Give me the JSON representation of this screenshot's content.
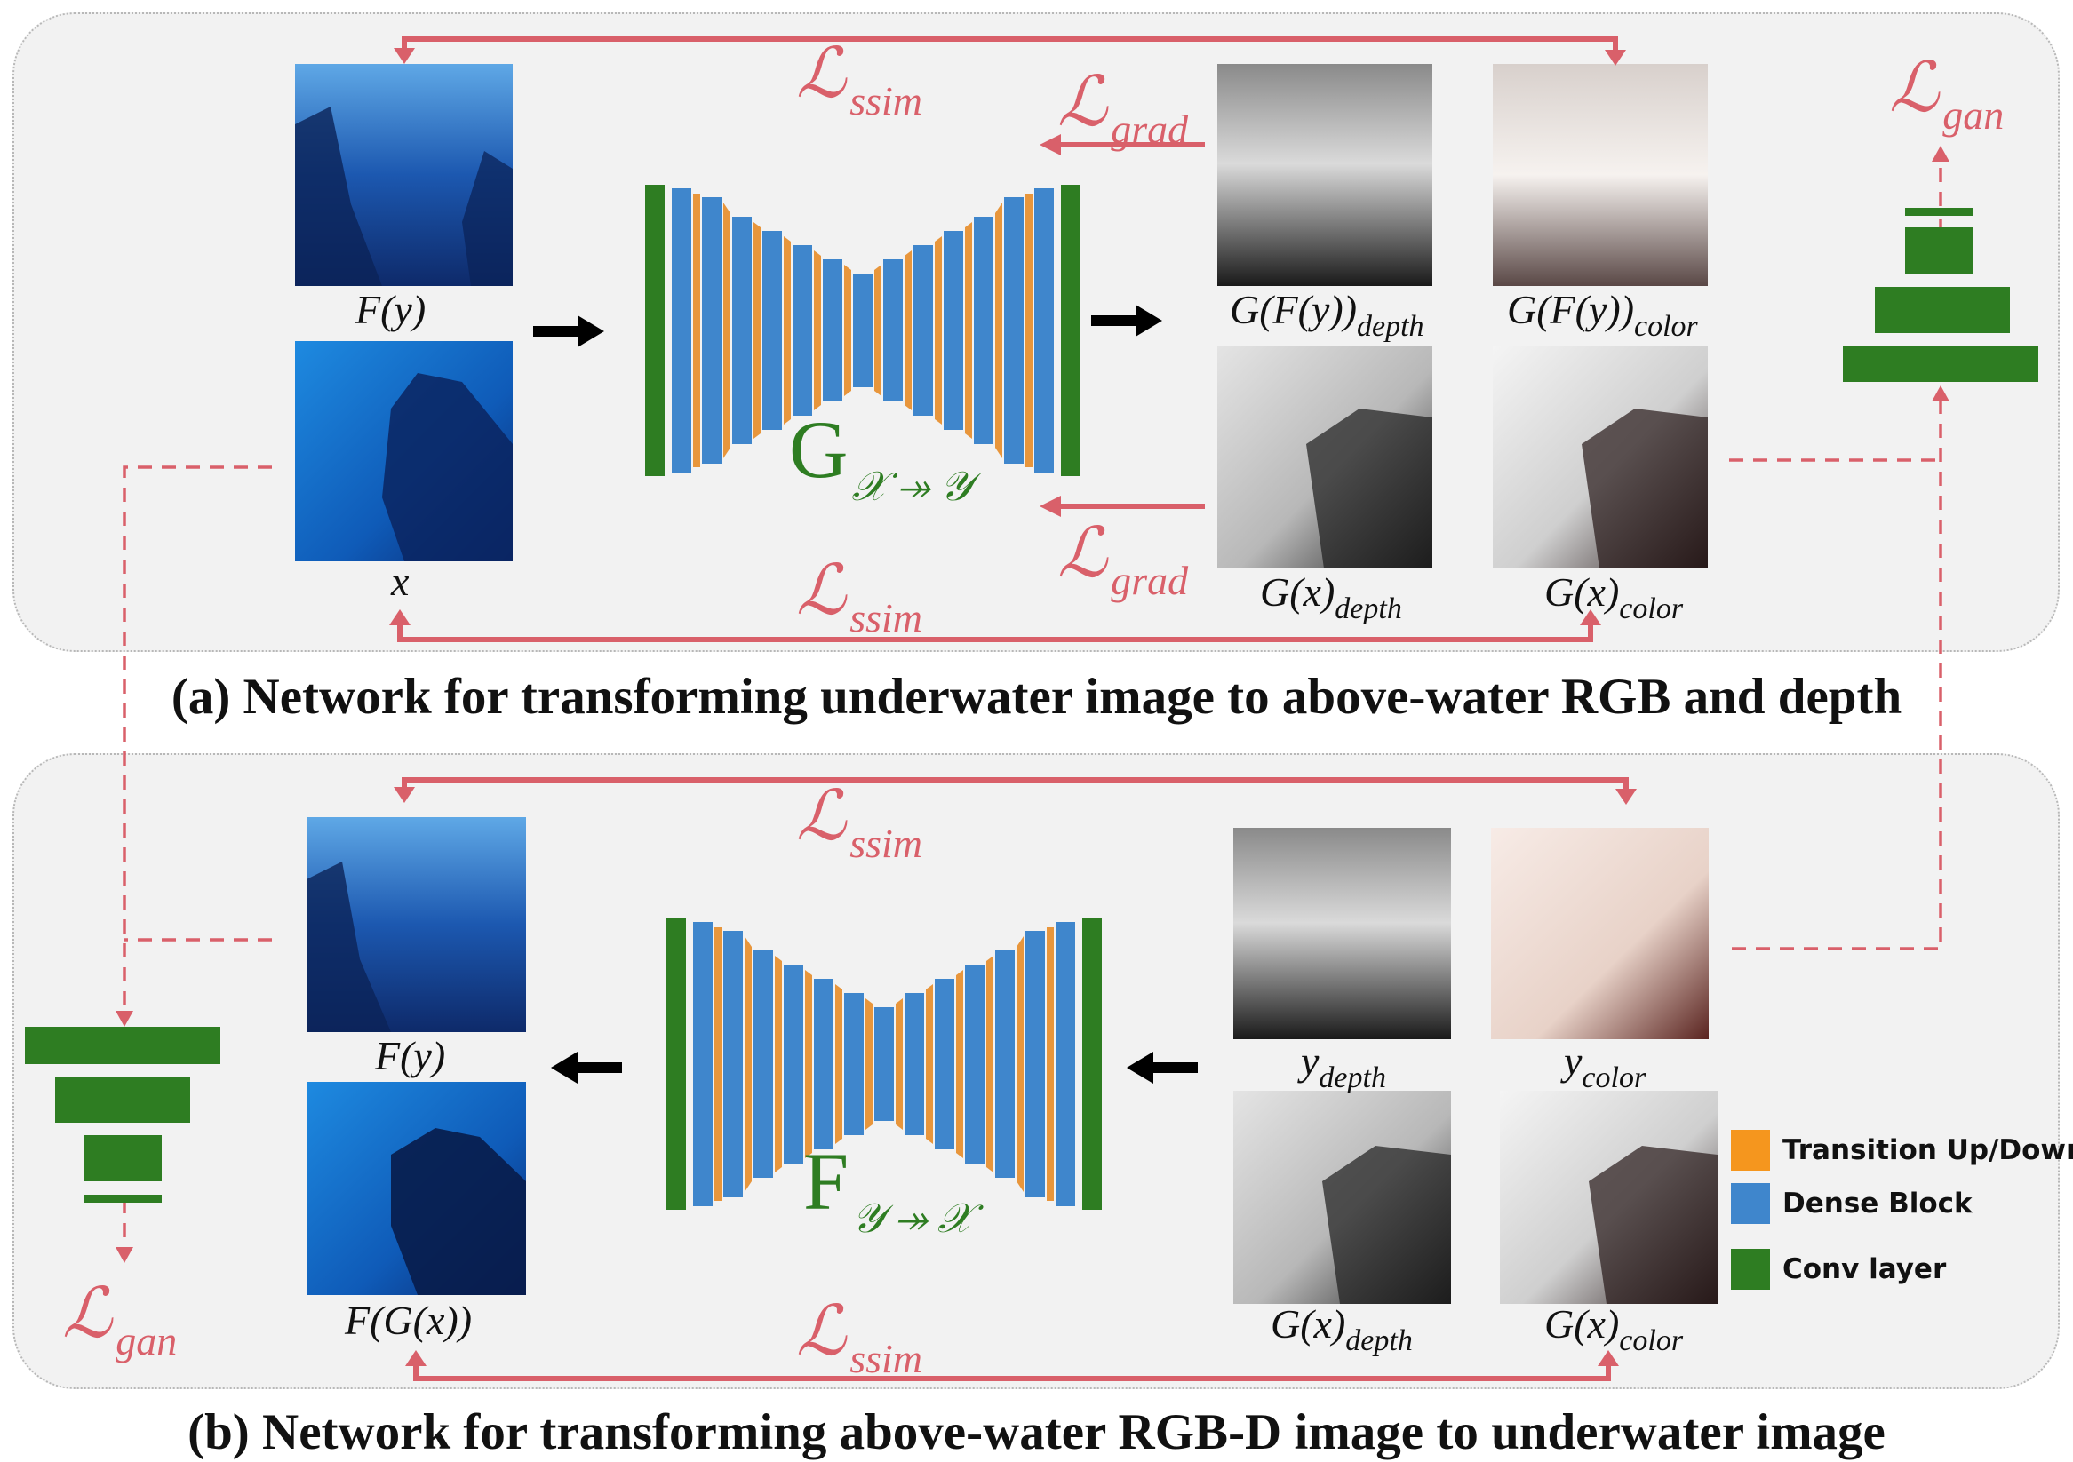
{
  "panel_a": {
    "caption": "(a)   Network for transforming underwater image to above-water RGB and depth",
    "input_labels": {
      "fy": "F(y)",
      "x": "x"
    },
    "network": {
      "symbol": "G",
      "subscript": "𝒳 ↠ 𝒴"
    },
    "output_labels": {
      "gfy_depth": {
        "base": "G(F(y))",
        "sub": "depth"
      },
      "gfy_color": {
        "base": "G(F(y))",
        "sub": "color"
      },
      "gx_depth": {
        "base": "G(x)",
        "sub": "depth"
      },
      "gx_color": {
        "base": "G(x)",
        "sub": "color"
      }
    },
    "losses": {
      "ssim_top": "ssim",
      "ssim_bottom": "ssim",
      "grad_top": "grad",
      "grad_bottom": "grad",
      "gan": "gan"
    }
  },
  "panel_b": {
    "caption": "(b)   Network for transforming above-water RGB-D image to underwater image",
    "output_labels": {
      "fy": "F(y)",
      "fgx": "F(G(x))"
    },
    "network": {
      "symbol": "F",
      "subscript": "𝒴 ↠ 𝒳"
    },
    "input_labels": {
      "y_depth": {
        "base": "y",
        "sub": "depth"
      },
      "y_color": {
        "base": "y",
        "sub": "color"
      },
      "gx_depth": {
        "base": "G(x)",
        "sub": "depth"
      },
      "gx_color": {
        "base": "G(x)",
        "sub": "color"
      }
    },
    "losses": {
      "ssim_top": "ssim",
      "ssim_bottom": "ssim",
      "gan": "gan"
    }
  },
  "loss_symbol": "ℒ",
  "legend": [
    {
      "label": "Transition Up/Down",
      "color": "#f5961e"
    },
    {
      "label": "Dense Block",
      "color": "#3f86cc"
    },
    {
      "label": "Conv layer",
      "color": "#2e7d22"
    }
  ],
  "colors": {
    "loss": "#d9606a",
    "conv": "#2e7d22",
    "dense": "#3f86cc",
    "transition": "#e8963c"
  }
}
